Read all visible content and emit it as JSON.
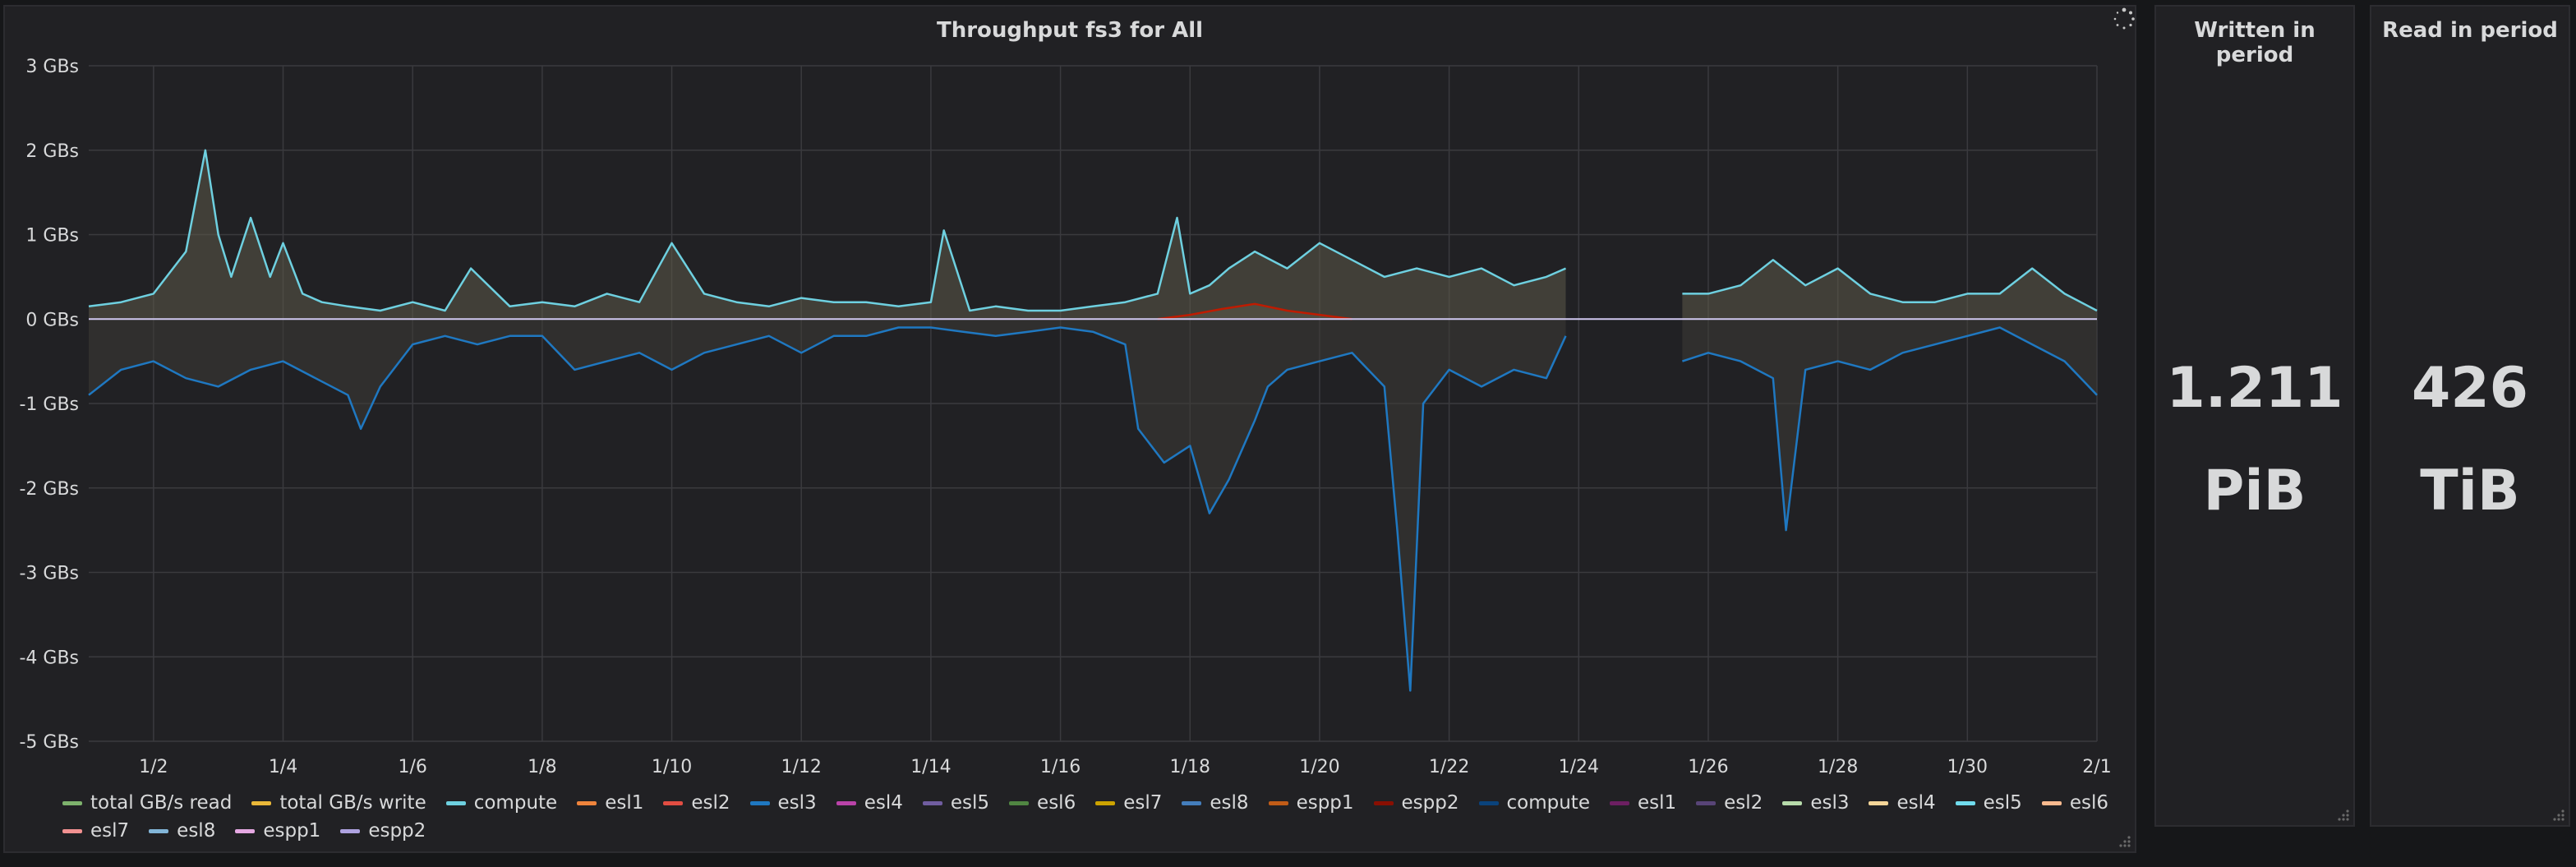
{
  "panels": {
    "graph": {
      "title": "Throughput fs3 for All"
    },
    "written": {
      "title": "Written in period",
      "value": "1.211",
      "unit": "PiB"
    },
    "read": {
      "title": "Read in period",
      "value": "426",
      "unit": "TiB"
    }
  },
  "icons": {
    "loading": "spinner-icon",
    "resize": "resize-handle-icon"
  },
  "colors": {
    "background": "#161719",
    "panel": "#212124",
    "grid": "#3a3a3e",
    "written_fill": "#5c5a48",
    "read_fill": "#3e3d36",
    "compute_write": "#6ed0e0",
    "compute_read": "#1f78c1",
    "total_read": "#7eb26d",
    "total_write": "#eab839",
    "espp2": "#bf1b00",
    "esl4": "#ba43a9"
  },
  "chart_data": {
    "type": "line",
    "title": "Throughput fs3 for All",
    "ylabel": "",
    "xlabel": "",
    "ylim": [
      -5,
      3
    ],
    "xlim": [
      1,
      32
    ],
    "yticks": [
      3,
      2,
      1,
      0,
      -1,
      -2,
      -3,
      -4,
      -5
    ],
    "ytick_labels": [
      "3 GBs",
      "2 GBs",
      "1 GBs",
      "0 GBs",
      "-1 GBs",
      "-2 GBs",
      "-3 GBs",
      "-4 GBs",
      "-5 GBs"
    ],
    "xticks": [
      2,
      4,
      6,
      8,
      10,
      12,
      14,
      16,
      18,
      20,
      22,
      24,
      26,
      28,
      30,
      32
    ],
    "xtick_labels": [
      "1/2",
      "1/4",
      "1/6",
      "1/8",
      "1/10",
      "1/12",
      "1/14",
      "1/16",
      "1/18",
      "1/20",
      "1/22",
      "1/24",
      "1/26",
      "1/28",
      "1/30",
      "2/1"
    ],
    "grid": true,
    "legend_position": "bottom",
    "series": [
      {
        "name": "compute",
        "color": "#6ed0e0",
        "x": [
          1,
          1.5,
          2,
          2.5,
          2.8,
          3,
          3.2,
          3.5,
          3.8,
          4,
          4.3,
          4.6,
          5,
          5.5,
          6,
          6.5,
          6.9,
          7.5,
          8,
          8.5,
          9,
          9.5,
          10,
          10.5,
          11,
          11.5,
          12,
          12.5,
          13,
          13.5,
          14,
          14.2,
          14.6,
          15,
          15.5,
          16,
          16.5,
          17,
          17.5,
          17.8,
          18,
          18.3,
          18.6,
          19,
          19.5,
          20,
          20.5,
          21,
          21.5,
          22,
          22.5,
          23,
          23.5,
          23.8,
          25.6,
          26,
          26.5,
          27,
          27.5,
          28,
          28.5,
          29,
          29.5,
          30,
          30.5,
          31,
          31.5,
          32
        ],
        "y": [
          0.15,
          0.2,
          0.3,
          0.8,
          2.0,
          1.0,
          0.5,
          1.2,
          0.5,
          0.9,
          0.3,
          0.2,
          0.15,
          0.1,
          0.2,
          0.1,
          0.6,
          0.15,
          0.2,
          0.15,
          0.3,
          0.2,
          0.9,
          0.3,
          0.2,
          0.15,
          0.25,
          0.2,
          0.2,
          0.15,
          0.2,
          1.05,
          0.1,
          0.15,
          0.1,
          0.1,
          0.15,
          0.2,
          0.3,
          1.2,
          0.3,
          0.4,
          0.6,
          0.8,
          0.6,
          0.9,
          0.7,
          0.5,
          0.6,
          0.5,
          0.6,
          0.4,
          0.5,
          0.6,
          0.3,
          0.3,
          0.4,
          0.7,
          0.4,
          0.6,
          0.3,
          0.2,
          0.2,
          0.3,
          0.3,
          0.6,
          0.3,
          0.1
        ]
      },
      {
        "name": "compute",
        "color": "#1f78c1",
        "x": [
          1,
          1.5,
          2,
          2.5,
          3,
          3.5,
          4,
          4.5,
          5,
          5.2,
          5.5,
          6,
          6.5,
          7,
          7.5,
          8,
          8.5,
          9,
          9.5,
          10,
          10.5,
          11,
          11.5,
          12,
          12.5,
          13,
          13.5,
          14,
          14.5,
          15,
          15.5,
          16,
          16.5,
          17,
          17.2,
          17.6,
          18,
          18.3,
          18.6,
          19,
          19.2,
          19.5,
          20,
          20.5,
          21,
          21.2,
          21.4,
          21.6,
          22,
          22.5,
          23,
          23.5,
          23.8,
          25.6,
          26,
          26.5,
          27,
          27.2,
          27.5,
          28,
          28.5,
          29,
          29.5,
          30,
          30.5,
          31,
          31.5,
          32
        ],
        "y": [
          -0.9,
          -0.6,
          -0.5,
          -0.7,
          -0.8,
          -0.6,
          -0.5,
          -0.7,
          -0.9,
          -1.3,
          -0.8,
          -0.3,
          -0.2,
          -0.3,
          -0.2,
          -0.2,
          -0.6,
          -0.5,
          -0.4,
          -0.6,
          -0.4,
          -0.3,
          -0.2,
          -0.4,
          -0.2,
          -0.2,
          -0.1,
          -0.1,
          -0.15,
          -0.2,
          -0.15,
          -0.1,
          -0.15,
          -0.3,
          -1.3,
          -1.7,
          -1.5,
          -2.3,
          -1.9,
          -1.2,
          -0.8,
          -0.6,
          -0.5,
          -0.4,
          -0.8,
          -2.5,
          -4.4,
          -1.0,
          -0.6,
          -0.8,
          -0.6,
          -0.7,
          -0.2,
          -0.5,
          -0.4,
          -0.5,
          -0.7,
          -2.5,
          -0.6,
          -0.5,
          -0.6,
          -0.4,
          -0.3,
          -0.2,
          -0.1,
          -0.3,
          -0.5,
          -0.9
        ]
      },
      {
        "name": "espp2",
        "color": "#bf1b00",
        "x": [
          17.5,
          18,
          18.5,
          19,
          19.5,
          20,
          20.5
        ],
        "y": [
          0.0,
          0.05,
          0.12,
          0.18,
          0.1,
          0.05,
          0.0
        ]
      }
    ],
    "legend": [
      {
        "name": "total GB/s read",
        "color": "#7eb26d"
      },
      {
        "name": "total GB/s write",
        "color": "#eab839"
      },
      {
        "name": "compute",
        "color": "#6ed0e0"
      },
      {
        "name": "esl1",
        "color": "#ef843c"
      },
      {
        "name": "esl2",
        "color": "#e24d42"
      },
      {
        "name": "esl3",
        "color": "#1f78c1"
      },
      {
        "name": "esl4",
        "color": "#ba43a9"
      },
      {
        "name": "esl5",
        "color": "#705da0"
      },
      {
        "name": "esl6",
        "color": "#508642"
      },
      {
        "name": "esl7",
        "color": "#cca300"
      },
      {
        "name": "esl8",
        "color": "#447ebc"
      },
      {
        "name": "espp1",
        "color": "#c15c17"
      },
      {
        "name": "espp2",
        "color": "#890f02"
      },
      {
        "name": "compute",
        "color": "#0a437c"
      },
      {
        "name": "esl1",
        "color": "#6d1f62"
      },
      {
        "name": "esl2",
        "color": "#584477"
      },
      {
        "name": "esl3",
        "color": "#b7dbab"
      },
      {
        "name": "esl4",
        "color": "#f4d598"
      },
      {
        "name": "esl5",
        "color": "#70dbed"
      },
      {
        "name": "esl6",
        "color": "#f9ba8f"
      },
      {
        "name": "esl7",
        "color": "#f29191"
      },
      {
        "name": "esl8",
        "color": "#82b5d8"
      },
      {
        "name": "espp1",
        "color": "#e5a8e2"
      },
      {
        "name": "espp2",
        "color": "#aea2e0"
      }
    ]
  }
}
